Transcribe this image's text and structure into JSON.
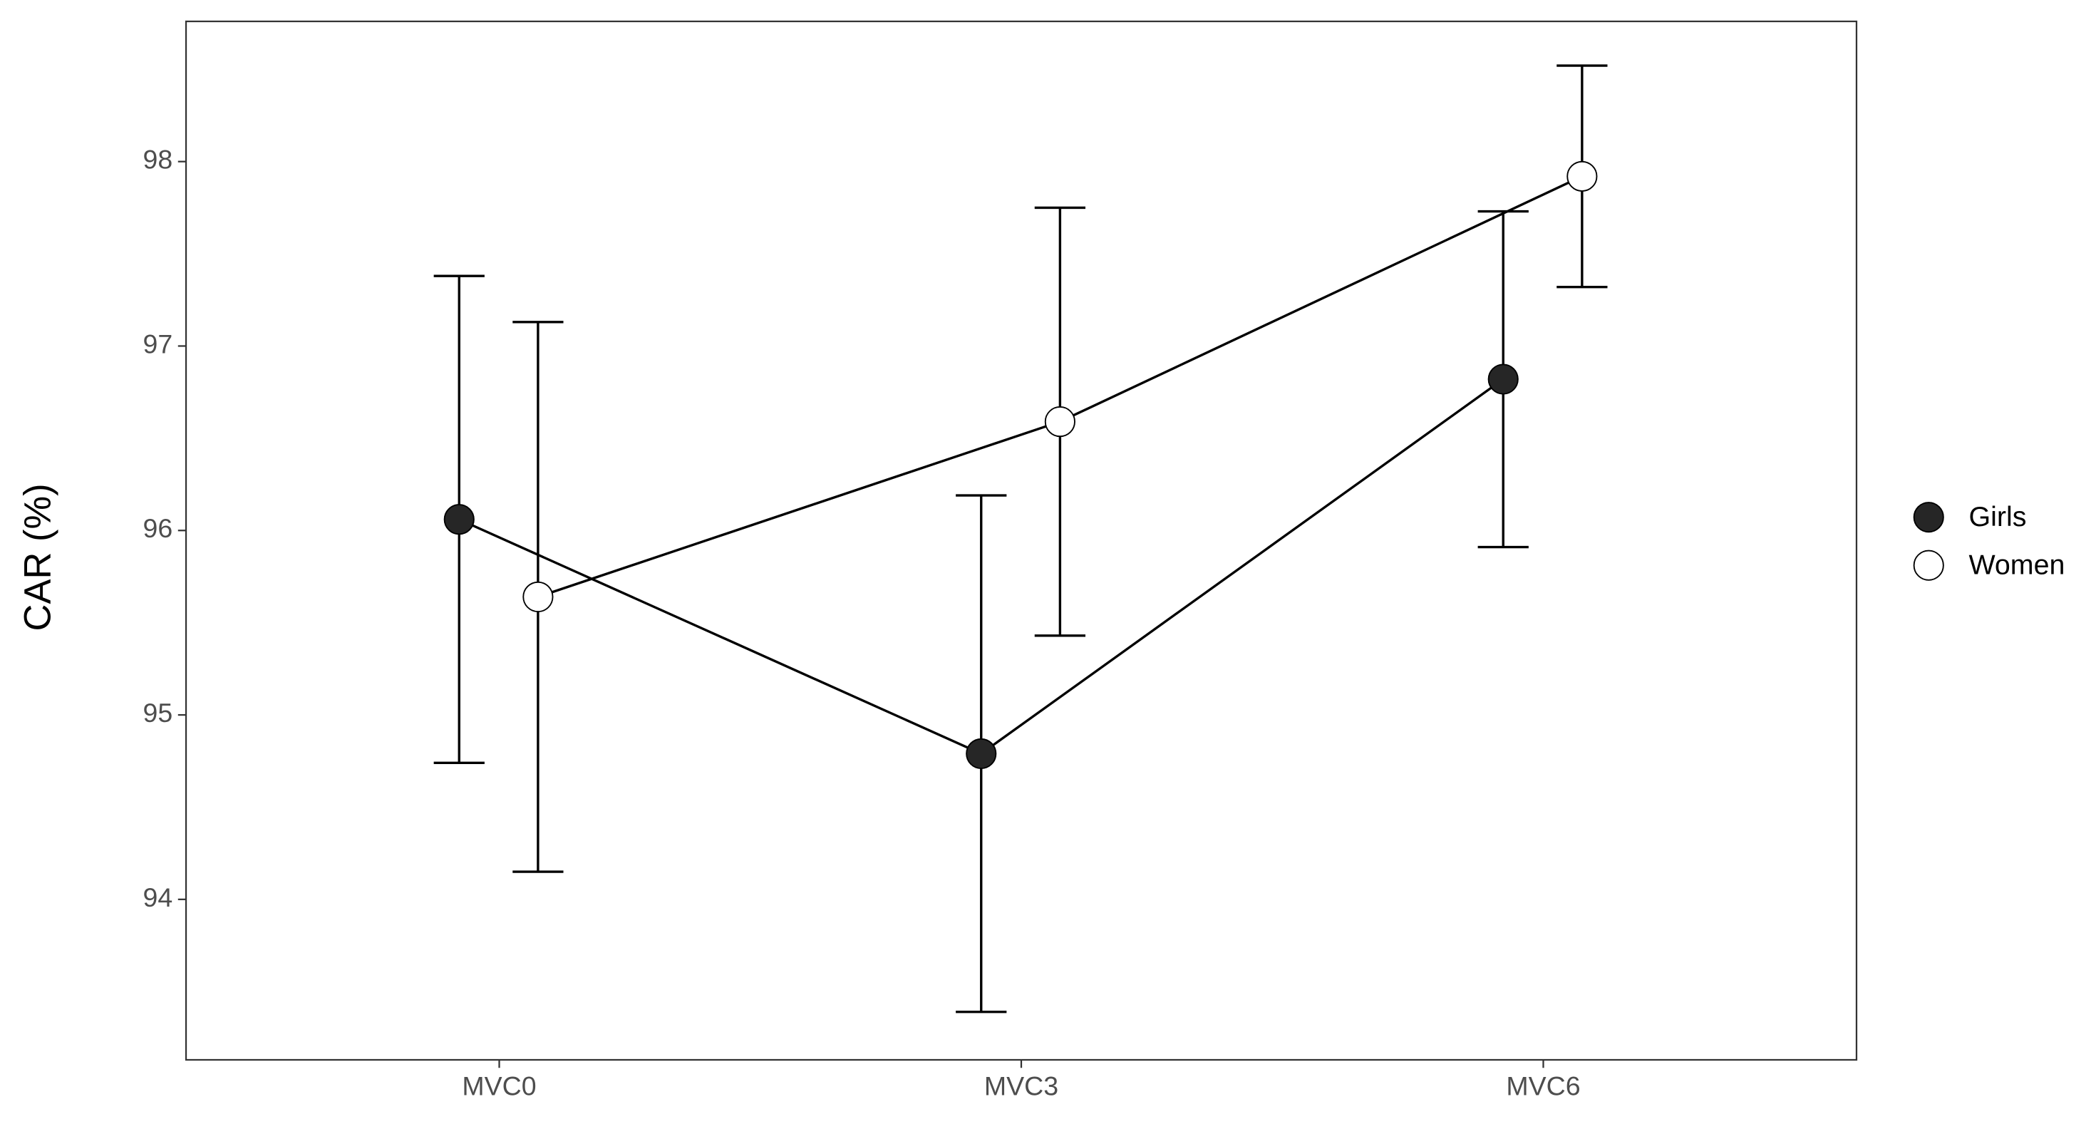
{
  "chart_data": {
    "type": "line",
    "y_label": "CAR (%)",
    "categories": [
      "MVC0",
      "MVC3",
      "MVC6"
    ],
    "series": [
      {
        "name": "Girls",
        "color": "#262626",
        "values": [
          96.06,
          94.79,
          96.82
        ],
        "errors": [
          1.32,
          1.4,
          0.91
        ]
      },
      {
        "name": "Women",
        "color": "#ffffff",
        "values": [
          95.64,
          96.59,
          97.92
        ],
        "errors": [
          1.49,
          1.16,
          0.6
        ]
      }
    ],
    "ylim": [
      93.13,
      98.76
    ],
    "yticks": [
      94,
      95,
      96,
      97,
      98
    ],
    "grid": false,
    "legend": "right"
  }
}
